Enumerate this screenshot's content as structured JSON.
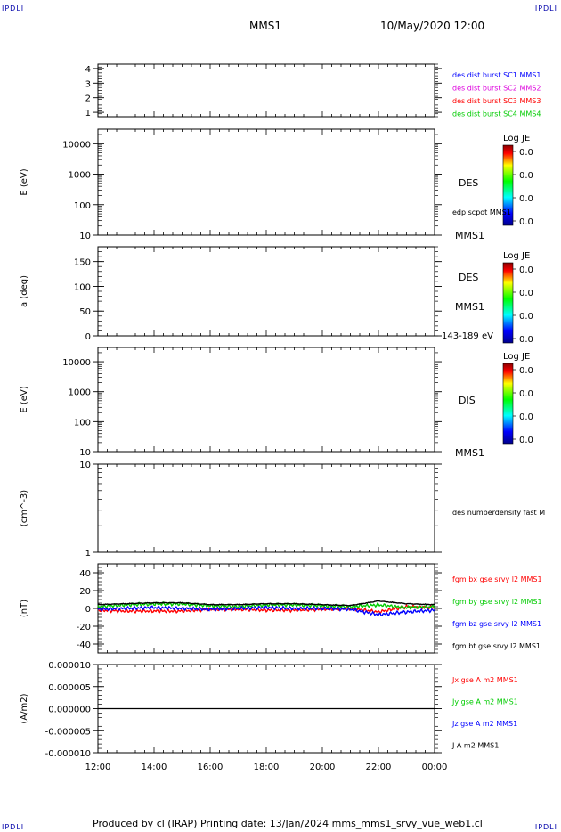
{
  "corner_tag": "IPDLI",
  "header": {
    "spacecraft": "MMS1",
    "date": "10/May/2020 12:00"
  },
  "footer": "Produced by cl (IRAP)   Printing date: 13/Jan/2024   mms_mms1_srvy_vue_web1.cl",
  "colors": {
    "blue": "#0000ff",
    "magenta": "#dd00dd",
    "red": "#ff0000",
    "green": "#00cc00",
    "black": "#000000"
  },
  "chart_data": [
    {
      "type": "line",
      "panel": "burst",
      "yticks": [
        "1",
        "2",
        "3",
        "4"
      ],
      "ylim": [
        0.7,
        4.3
      ],
      "legend": [
        {
          "label": "des dist burst SC1 MMS1",
          "color": "#0000ff"
        },
        {
          "label": "des dist burst SC2 MMS2",
          "color": "#dd00dd"
        },
        {
          "label": "des dist burst SC3 MMS3",
          "color": "#ff0000"
        },
        {
          "label": "des dist burst SC4 MMS4",
          "color": "#00cc00"
        }
      ]
    },
    {
      "type": "heatmap",
      "panel": "des-energy",
      "ylabel": "E (eV)",
      "yscale": "log",
      "ylim": [
        10,
        30000
      ],
      "yticks": [
        "10",
        "100",
        "1000",
        "10000"
      ],
      "side_labels": [
        "DES",
        "edp scpot MMS1",
        "MMS1"
      ],
      "colorbar": {
        "title": "Log JE",
        "ticks": [
          "0.0",
          "0.0",
          "0.0",
          "0.0"
        ]
      }
    },
    {
      "type": "heatmap",
      "panel": "des-pitch",
      "ylabel": "a (deg)",
      "ylim": [
        0,
        180
      ],
      "yticks": [
        "0",
        "50",
        "100",
        "150"
      ],
      "side_labels": [
        "DES",
        "MMS1",
        "143-189 eV"
      ],
      "colorbar": {
        "title": "Log JE",
        "ticks": [
          "0.0",
          "0.0",
          "0.0",
          "0.0"
        ]
      }
    },
    {
      "type": "heatmap",
      "panel": "dis-energy",
      "ylabel": "E (eV)",
      "yscale": "log",
      "ylim": [
        10,
        30000
      ],
      "yticks": [
        "10",
        "100",
        "1000",
        "10000"
      ],
      "side_labels": [
        "DIS",
        "MMS1"
      ],
      "colorbar": {
        "title": "Log JE",
        "ticks": [
          "0.0",
          "0.0",
          "0.0",
          "0.0"
        ]
      }
    },
    {
      "type": "line",
      "panel": "density",
      "ylabel": "(cm^-3)",
      "yscale": "log",
      "ylim": [
        1,
        10
      ],
      "yticks": [
        "1",
        "10"
      ],
      "legend": [
        {
          "label": "des numberdensity fast M",
          "color": "#000000"
        }
      ]
    },
    {
      "type": "line",
      "panel": "fgm",
      "ylabel": "(nT)",
      "ylim": [
        -50,
        50
      ],
      "yticks": [
        "-40",
        "-20",
        "0",
        "20",
        "40"
      ],
      "x": [
        0,
        1,
        2,
        3,
        4,
        5,
        6,
        7,
        8,
        9,
        10,
        11,
        12
      ],
      "series": [
        {
          "name": "fgm bx gse srvy l2 MMS1",
          "color": "#ff0000",
          "values": [
            -2,
            -3,
            -3,
            -3,
            -1,
            -1,
            -2,
            -2,
            -1,
            0,
            -4,
            2,
            1
          ]
        },
        {
          "name": "fgm by gse srvy l2 MMS1",
          "color": "#00cc00",
          "values": [
            2,
            4,
            5,
            5,
            3,
            2,
            4,
            4,
            3,
            2,
            4,
            1,
            2
          ]
        },
        {
          "name": "fgm bz gse srvy l2 MMS1",
          "color": "#0000ff",
          "values": [
            -1,
            0,
            1,
            0,
            -1,
            0,
            1,
            0,
            0,
            -1,
            -7,
            -4,
            -2
          ]
        },
        {
          "name": "fgm bt gse srvy l2 MMS1",
          "color": "#000000",
          "values": [
            4,
            5,
            6,
            6,
            4,
            4,
            5,
            5,
            4,
            3,
            8,
            5,
            4
          ]
        }
      ]
    },
    {
      "type": "line",
      "panel": "current",
      "ylabel": "(A/m2)",
      "ylim": [
        -1e-05,
        1e-05
      ],
      "yticks": [
        "-0.000010",
        "-0.000005",
        "0.000000",
        "0.000005",
        "0.000010"
      ],
      "legend": [
        {
          "label": "Jx gse A m2 MMS1",
          "color": "#ff0000"
        },
        {
          "label": "Jy gse A m2 MMS1",
          "color": "#00cc00"
        },
        {
          "label": "Jz gse A m2 MMS1",
          "color": "#0000ff"
        },
        {
          "label": "J A m2 MMS1",
          "color": "#000000"
        }
      ]
    }
  ],
  "xaxis": {
    "ticks": [
      "12:00",
      "14:00",
      "16:00",
      "18:00",
      "20:00",
      "22:00",
      "00:00"
    ]
  }
}
